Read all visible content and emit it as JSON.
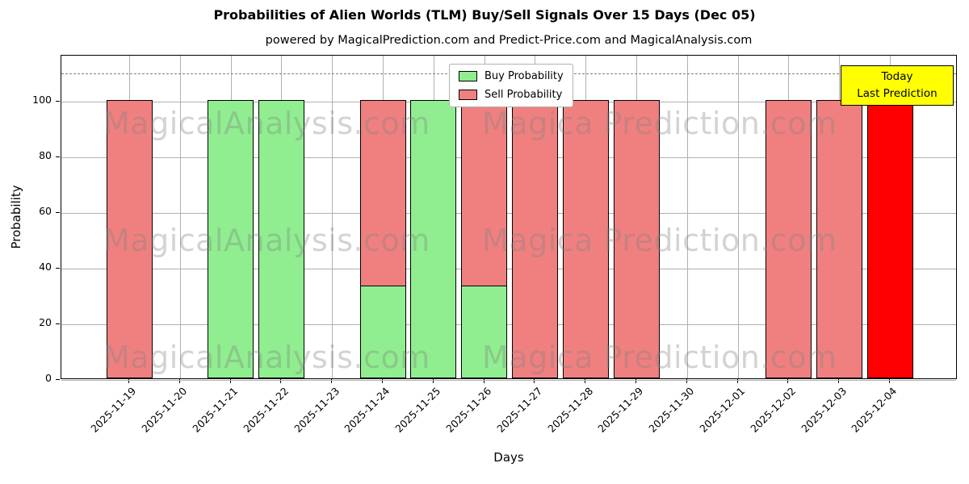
{
  "title": "Probabilities of Alien Worlds (TLM) Buy/Sell Signals Over 15 Days (Dec 05)",
  "subtitle": "powered by MagicalPrediction.com and Predict-Price.com and MagicalAnalysis.com",
  "xlabel": "Days",
  "ylabel": "Probability",
  "legend": {
    "buy": "Buy Probability",
    "sell": "Sell Probability"
  },
  "annotation": {
    "line1": "Today",
    "line2": "Last Prediction",
    "bg": "#ffff00"
  },
  "watermarks": {
    "left": "MagicalAnalysis.com",
    "right": "Magica Prediction.com"
  },
  "chart_data": {
    "type": "bar",
    "categories": [
      "2025-11-19",
      "2025-11-20",
      "2025-11-21",
      "2025-11-22",
      "2025-11-23",
      "2025-11-24",
      "2025-11-25",
      "2025-11-26",
      "2025-11-27",
      "2025-11-28",
      "2025-11-29",
      "2025-11-30",
      "2025-12-01",
      "2025-12-02",
      "2025-12-03",
      "2025-12-04"
    ],
    "series": [
      {
        "name": "Buy Probability",
        "color": "#90ee90",
        "values": [
          0,
          0,
          100,
          100,
          0,
          33.33,
          100,
          33.33,
          0,
          0,
          0,
          0,
          0,
          0,
          0,
          0
        ]
      },
      {
        "name": "Sell Probability",
        "color": "#f08080",
        "values": [
          100,
          0,
          0,
          0,
          0,
          100,
          0,
          100,
          100,
          100,
          100,
          0,
          0,
          100,
          100,
          100
        ]
      }
    ],
    "last_bar": {
      "index": 15,
      "color": "#ff0000",
      "label": "Last Prediction"
    },
    "yticks": [
      0,
      20,
      40,
      60,
      80,
      100
    ],
    "ylim": [
      0,
      116.5
    ],
    "dashed_line_y": 110,
    "grid": true,
    "legend_position": "top-center",
    "xlabel": "Days",
    "ylabel": "Probability"
  }
}
